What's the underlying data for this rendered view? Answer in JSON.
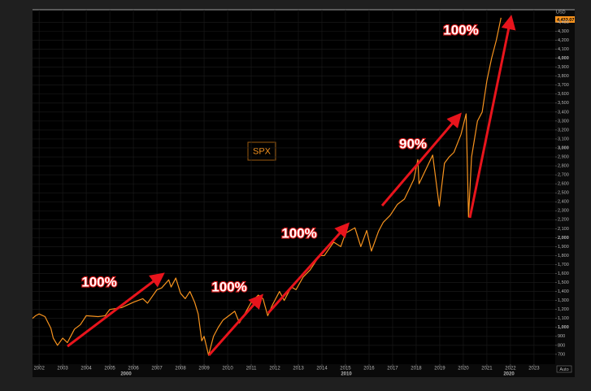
{
  "chart_data": {
    "type": "line",
    "title": "SPX",
    "unit_label": "USD",
    "last_value_label": "4,433.07",
    "scale_mode_label": "Auto",
    "decade_labels": [
      "2000",
      "2010",
      "2020"
    ],
    "annotations": [
      "100%",
      "100%",
      "100%",
      "90%",
      "100%"
    ],
    "grid": true,
    "xlim": [
      2001.72,
      2023.9
    ],
    "xticks": [
      2002,
      2003,
      2004,
      2005,
      2006,
      2007,
      2008,
      2009,
      2010,
      2011,
      2012,
      2013,
      2014,
      2015,
      2016,
      2017,
      2018,
      2019,
      2020,
      2021,
      2022,
      2023
    ],
    "ylim": [
      590,
      4540
    ],
    "yticks": [
      700,
      800,
      900,
      {
        "value": 1000,
        "label": "1,000"
      },
      {
        "value": 1100,
        "label": "1,100"
      },
      {
        "value": 1200,
        "label": "1,200"
      },
      {
        "value": 1300,
        "label": "1,300"
      },
      {
        "value": 1400,
        "label": "1,400"
      },
      {
        "value": 1500,
        "label": "1,500"
      },
      {
        "value": 1600,
        "label": "1,600"
      },
      {
        "value": 1700,
        "label": "1,700"
      },
      {
        "value": 1800,
        "label": "1,800"
      },
      {
        "value": 1900,
        "label": "1,900"
      },
      {
        "value": 2000,
        "label": "2,000"
      },
      {
        "value": 2100,
        "label": "2,100"
      },
      {
        "value": 2200,
        "label": "2,200"
      },
      {
        "value": 2300,
        "label": "2,300"
      },
      {
        "value": 2400,
        "label": "2,400"
      },
      {
        "value": 2500,
        "label": "2,500"
      },
      {
        "value": 2600,
        "label": "2,600"
      },
      {
        "value": 2700,
        "label": "2,700"
      },
      {
        "value": 2800,
        "label": "2,800"
      },
      {
        "value": 2900,
        "label": "2,900"
      },
      {
        "value": 3000,
        "label": "3,000"
      },
      {
        "value": 3100,
        "label": "3,100"
      },
      {
        "value": 3200,
        "label": "3,200"
      },
      {
        "value": 3300,
        "label": "3,300"
      },
      {
        "value": 3400,
        "label": "3,400"
      },
      {
        "value": 3500,
        "label": "3,500"
      },
      {
        "value": 3600,
        "label": "3,600"
      },
      {
        "value": 3700,
        "label": "3,700"
      },
      {
        "value": 3800,
        "label": "3,800"
      },
      {
        "value": 3900,
        "label": "3,900"
      },
      {
        "value": 4000,
        "label": "4,000"
      },
      {
        "value": 4100,
        "label": "4,100"
      },
      {
        "value": 4200,
        "label": "4,200"
      },
      {
        "value": 4300,
        "label": "4,300"
      },
      {
        "value": 4400,
        "label": "4,400"
      }
    ],
    "series": [
      {
        "name": "SPX",
        "color": "#f7931e",
        "x": [
          2001.72,
          2001.85,
          2002.0,
          2002.25,
          2002.5,
          2002.6,
          2002.78,
          2003.0,
          2003.2,
          2003.5,
          2003.75,
          2004.0,
          2004.5,
          2004.8,
          2005.0,
          2005.5,
          2006.0,
          2006.4,
          2006.6,
          2007.0,
          2007.2,
          2007.5,
          2007.6,
          2007.8,
          2008.0,
          2008.2,
          2008.4,
          2008.6,
          2008.75,
          2008.9,
          2009.0,
          2009.19,
          2009.4,
          2009.6,
          2009.8,
          2010.0,
          2010.3,
          2010.5,
          2010.7,
          2011.0,
          2011.3,
          2011.5,
          2011.7,
          2011.9,
          2012.2,
          2012.4,
          2012.7,
          2012.9,
          2013.2,
          2013.5,
          2013.9,
          2014.1,
          2014.5,
          2014.8,
          2015.0,
          2015.4,
          2015.65,
          2015.9,
          2016.1,
          2016.4,
          2016.6,
          2016.9,
          2017.2,
          2017.5,
          2017.9,
          2018.07,
          2018.12,
          2018.3,
          2018.7,
          2018.98,
          2019.2,
          2019.4,
          2019.6,
          2019.9,
          2020.12,
          2020.22,
          2020.35,
          2020.6,
          2020.8,
          2021.0,
          2021.2,
          2021.4,
          2021.6
        ],
        "values": [
          1100,
          1130,
          1150,
          1120,
          990,
          880,
          800,
          880,
          830,
          980,
          1030,
          1130,
          1120,
          1130,
          1200,
          1220,
          1280,
          1320,
          1270,
          1420,
          1440,
          1530,
          1450,
          1550,
          1380,
          1320,
          1400,
          1280,
          1150,
          850,
          900,
          690,
          900,
          1000,
          1080,
          1120,
          1180,
          1050,
          1140,
          1280,
          1360,
          1320,
          1130,
          1250,
          1400,
          1300,
          1450,
          1420,
          1560,
          1640,
          1800,
          1800,
          1950,
          1900,
          2050,
          2110,
          1900,
          2080,
          1850,
          2070,
          2170,
          2250,
          2370,
          2430,
          2650,
          2870,
          2600,
          2700,
          2920,
          2350,
          2830,
          2900,
          2950,
          3150,
          3380,
          2230,
          2900,
          3300,
          3400,
          3750,
          4000,
          4200,
          4450
        ]
      }
    ]
  }
}
